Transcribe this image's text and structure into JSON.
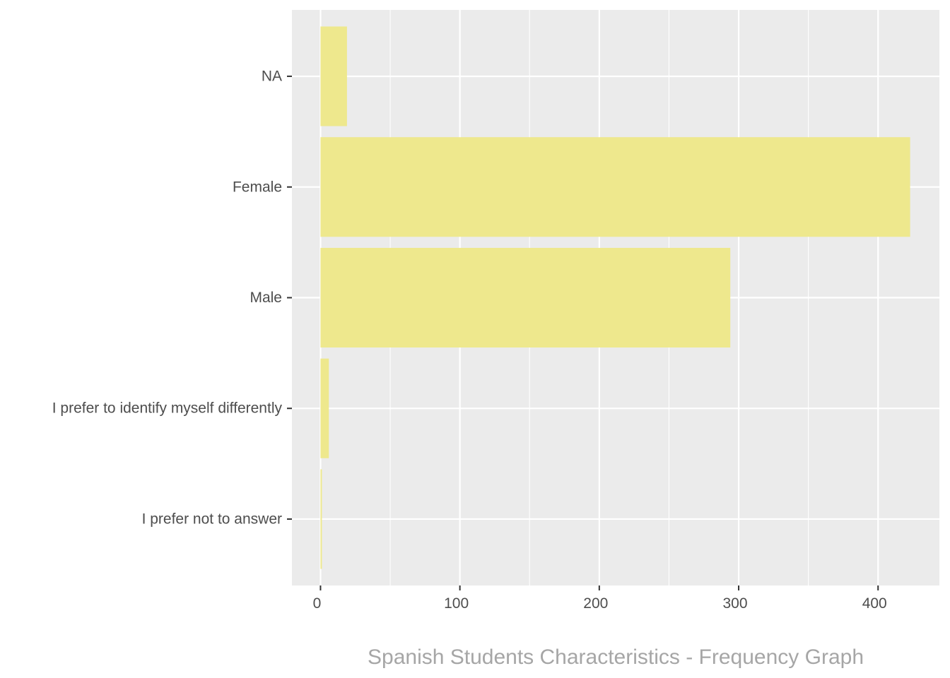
{
  "chart_data": {
    "type": "bar",
    "orientation": "horizontal",
    "categories": [
      "I prefer not to answer",
      "I prefer to identify myself differently",
      "Male",
      "Female",
      "NA"
    ],
    "values": [
      1,
      6,
      294,
      423,
      19
    ],
    "xlim": [
      -20.5,
      444
    ],
    "x_ticks": [
      0,
      100,
      200,
      300,
      400
    ],
    "x_tick_labels": [
      "0",
      "100",
      "200",
      "300",
      "400"
    ],
    "bar_color": "#eee88d",
    "panel_background": "#ebebeb",
    "grid_color": "#ffffff",
    "grid": true,
    "legend": "none",
    "caption": "Spanish Students Characteristics - Frequency Graph"
  }
}
